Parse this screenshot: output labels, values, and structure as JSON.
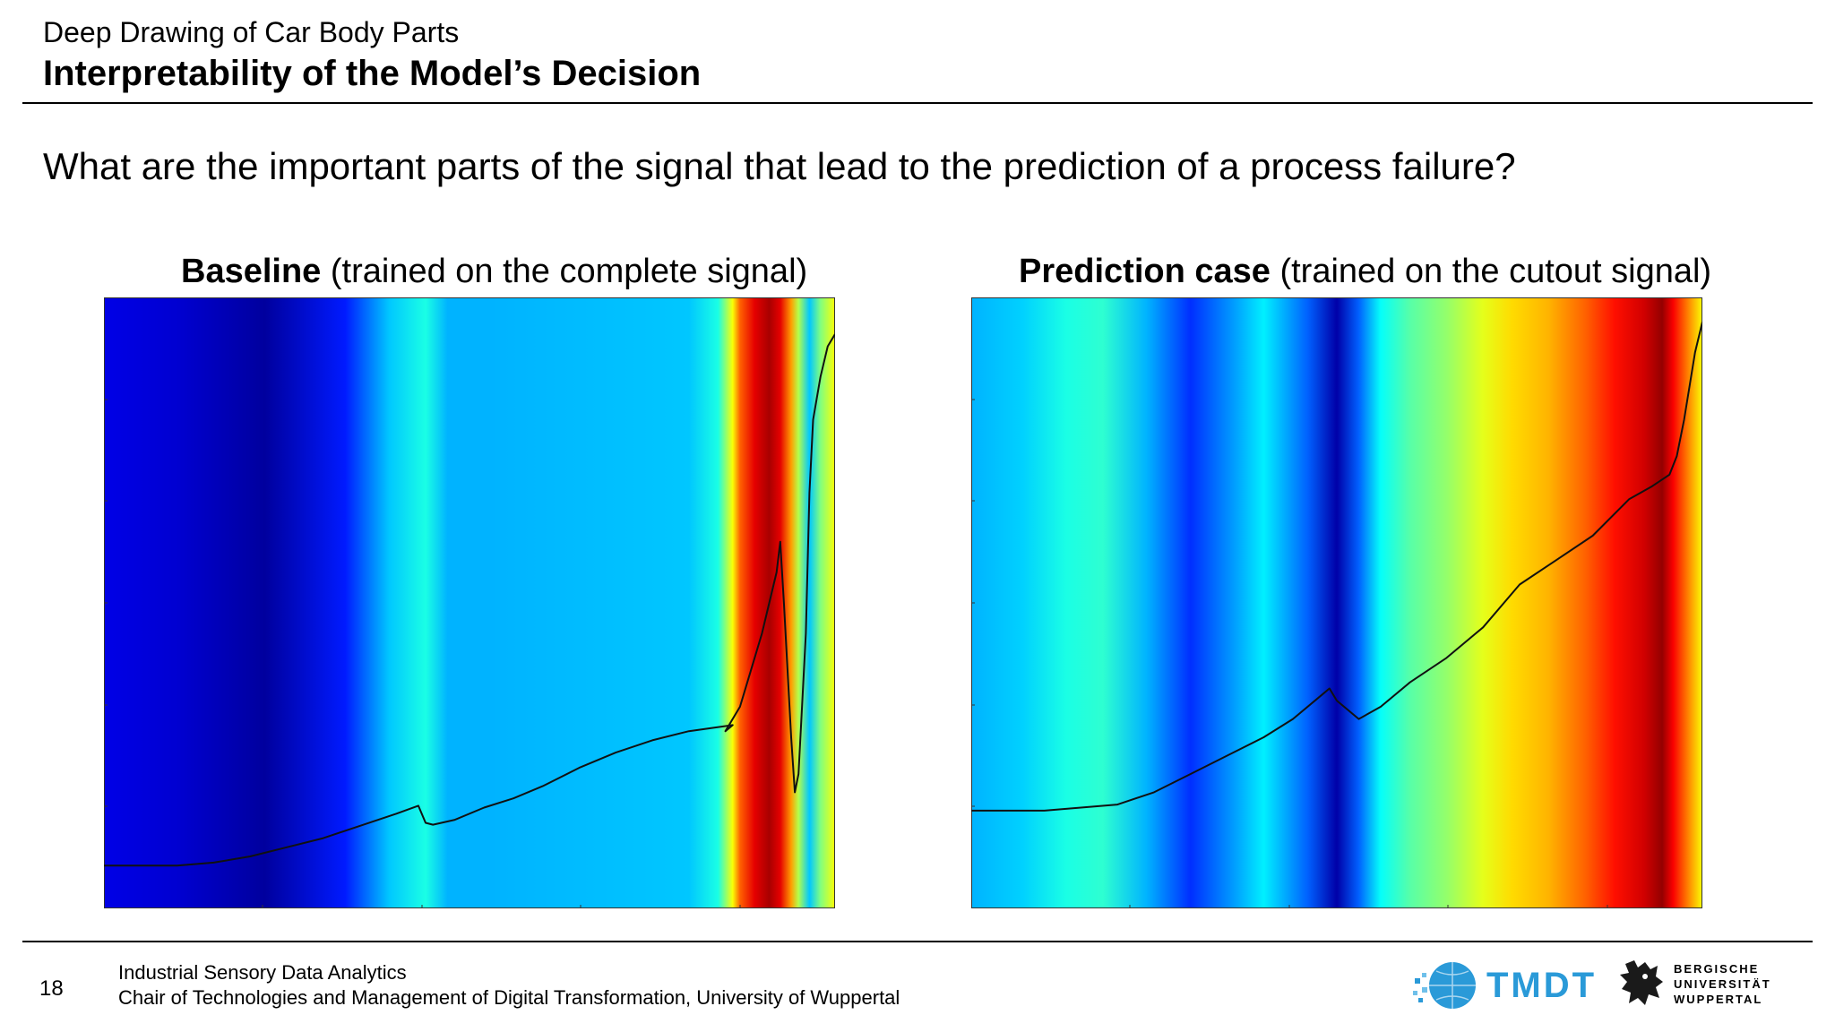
{
  "header": {
    "subtitle": "Deep Drawing of Car Body Parts",
    "title": "Interpretability of the Model’s Decision"
  },
  "question": "What are the important parts of the signal that lead to the prediction of a process failure?",
  "footer": {
    "page_number": "18",
    "line1": "Industrial Sensory Data Analytics",
    "line2": "Chair of Technologies and Management of Digital Transformation, University of Wuppertal"
  },
  "logos": {
    "tmdt": "TMDT",
    "university": [
      "BERGISCHE",
      "UNIVERSITÄT",
      "WUPPERTAL"
    ]
  },
  "chart_data": [
    {
      "type": "line",
      "title_bold": "Baseline",
      "title_rest": " (trained on the complete signal)",
      "xlabel": "",
      "ylabel": "",
      "xlim": [
        0,
        1
      ],
      "ylim": [
        0,
        1
      ],
      "grid": false,
      "background_heatmap": {
        "colormap": "jet",
        "stops": [
          [
            0.0,
            0.1
          ],
          [
            0.1,
            0.08
          ],
          [
            0.22,
            0.03
          ],
          [
            0.33,
            0.15
          ],
          [
            0.39,
            0.32
          ],
          [
            0.44,
            0.4
          ],
          [
            0.47,
            0.3
          ],
          [
            0.53,
            0.3
          ],
          [
            0.8,
            0.32
          ],
          [
            0.84,
            0.4
          ],
          [
            0.86,
            0.62
          ],
          [
            0.87,
            0.78
          ],
          [
            0.89,
            0.9
          ],
          [
            0.91,
            0.96
          ],
          [
            0.925,
            0.9
          ],
          [
            0.94,
            0.72
          ],
          [
            0.95,
            0.55
          ],
          [
            0.965,
            0.32
          ],
          [
            0.98,
            0.5
          ],
          [
            1.0,
            0.62
          ]
        ]
      },
      "series": [
        {
          "x": [
            0.0,
            0.05,
            0.1,
            0.15,
            0.2,
            0.25,
            0.3,
            0.35,
            0.4,
            0.43,
            0.44,
            0.45,
            0.48,
            0.52,
            0.56,
            0.6,
            0.65,
            0.7,
            0.75,
            0.8,
            0.86,
            0.85,
            0.87,
            0.9,
            0.92,
            0.925,
            0.93,
            0.94,
            0.945,
            0.95,
            0.96,
            0.965,
            0.97,
            0.98,
            0.99,
            1.0
          ],
          "y": [
            0.07,
            0.07,
            0.07,
            0.075,
            0.085,
            0.1,
            0.115,
            0.135,
            0.155,
            0.168,
            0.14,
            0.137,
            0.145,
            0.165,
            0.18,
            0.2,
            0.23,
            0.255,
            0.275,
            0.29,
            0.3,
            0.29,
            0.33,
            0.45,
            0.55,
            0.6,
            0.5,
            0.28,
            0.19,
            0.22,
            0.45,
            0.68,
            0.8,
            0.87,
            0.92,
            0.94
          ]
        }
      ]
    },
    {
      "type": "line",
      "title_bold": "Prediction case",
      "title_rest": " (trained on the cutout signal)",
      "xlabel": "",
      "ylabel": "",
      "xlim": [
        0,
        1
      ],
      "ylim": [
        0,
        1
      ],
      "grid": false,
      "background_heatmap": {
        "colormap": "jet",
        "stops": [
          [
            0.0,
            0.3
          ],
          [
            0.07,
            0.33
          ],
          [
            0.13,
            0.4
          ],
          [
            0.18,
            0.42
          ],
          [
            0.24,
            0.3
          ],
          [
            0.3,
            0.17
          ],
          [
            0.36,
            0.28
          ],
          [
            0.4,
            0.36
          ],
          [
            0.46,
            0.22
          ],
          [
            0.5,
            0.04
          ],
          [
            0.53,
            0.22
          ],
          [
            0.56,
            0.38
          ],
          [
            0.6,
            0.46
          ],
          [
            0.65,
            0.52
          ],
          [
            0.7,
            0.6
          ],
          [
            0.74,
            0.66
          ],
          [
            0.79,
            0.7
          ],
          [
            0.84,
            0.78
          ],
          [
            0.88,
            0.86
          ],
          [
            0.92,
            0.92
          ],
          [
            0.945,
            0.98
          ],
          [
            0.96,
            0.88
          ],
          [
            0.98,
            0.75
          ],
          [
            1.0,
            0.62
          ]
        ]
      },
      "series": [
        {
          "x": [
            0.0,
            0.05,
            0.1,
            0.15,
            0.2,
            0.25,
            0.3,
            0.35,
            0.4,
            0.44,
            0.48,
            0.49,
            0.5,
            0.53,
            0.56,
            0.6,
            0.65,
            0.7,
            0.75,
            0.8,
            0.85,
            0.9,
            0.93,
            0.955,
            0.965,
            0.975,
            0.99,
            1.0
          ],
          "y": [
            0.16,
            0.16,
            0.16,
            0.165,
            0.17,
            0.19,
            0.22,
            0.25,
            0.28,
            0.31,
            0.35,
            0.36,
            0.34,
            0.31,
            0.33,
            0.37,
            0.41,
            0.46,
            0.53,
            0.57,
            0.61,
            0.67,
            0.69,
            0.71,
            0.74,
            0.8,
            0.91,
            0.96
          ]
        }
      ]
    }
  ]
}
